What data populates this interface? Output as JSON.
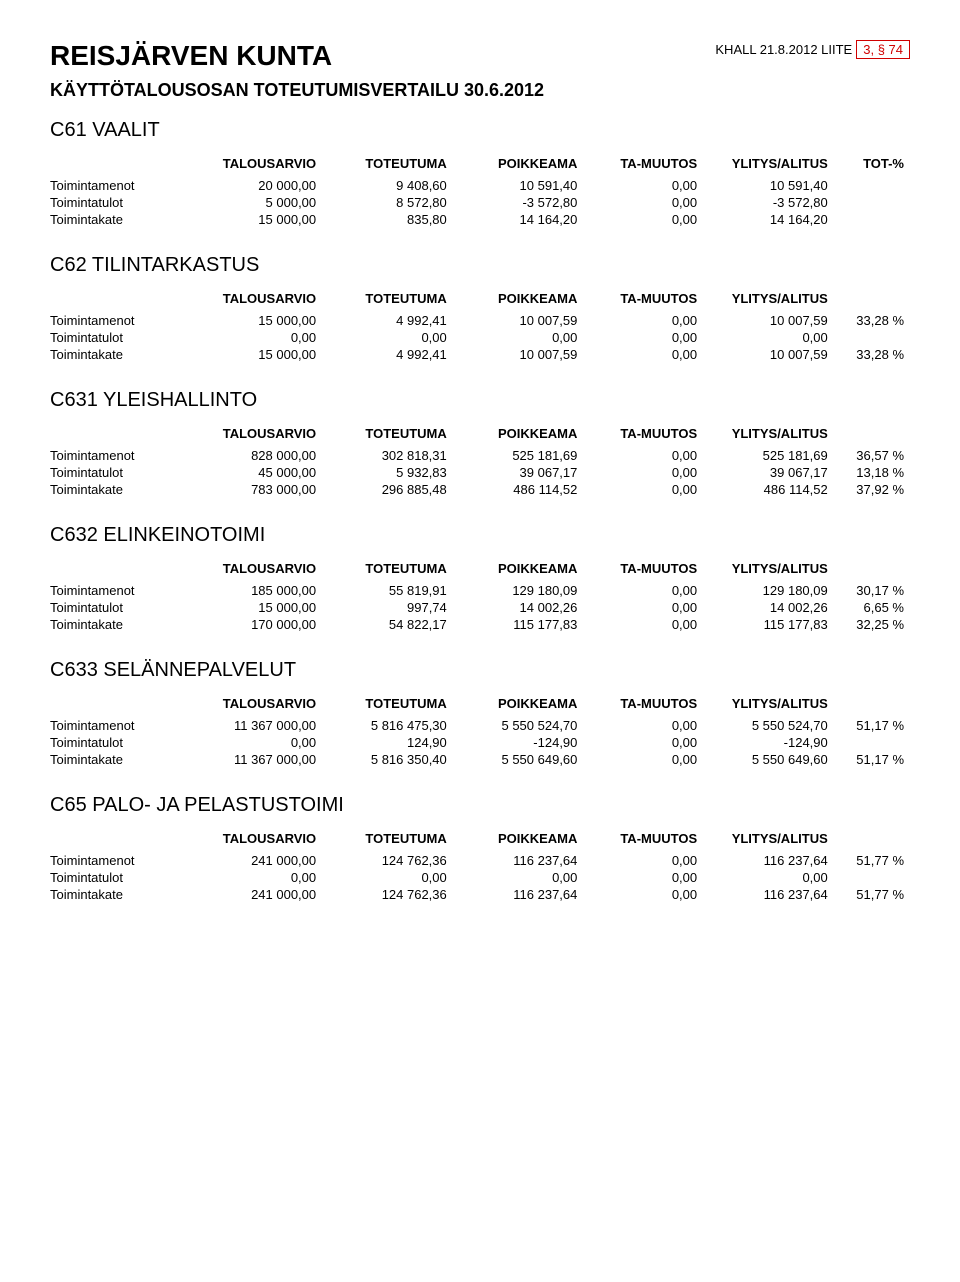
{
  "header": {
    "org": "REISJÄRVEN KUNTA",
    "meeting": "KHALL 21.8.2012 LIITE",
    "liite_box": "3, § 74",
    "subtitle": "KÄYTTÖTALOUSOSAN TOTEUTUMISVERTAILU 30.6.2012"
  },
  "col_labels": {
    "talousarvio": "TALOUSARVIO",
    "toteutuma": "TOTEUTUMA",
    "poikkeama": "POIKKEAMA",
    "ta_muutos": "TA-MUUTOS",
    "ylitys": "YLITYS/ALITUS",
    "totpct": "TOT-%"
  },
  "row_labels": {
    "menot": "Toimintamenot",
    "tulot": "Toimintatulot",
    "kate": "Toimintakate"
  },
  "sections": [
    {
      "title": "C61 VAALIT",
      "show_totpct_header": true,
      "rows": [
        {
          "label": "menot",
          "ta": "20 000,00",
          "tot": "9 408,60",
          "poik": "10 591,40",
          "mu": "0,00",
          "yl": "10 591,40",
          "pct": ""
        },
        {
          "label": "tulot",
          "ta": "5 000,00",
          "tot": "8 572,80",
          "poik": "-3 572,80",
          "mu": "0,00",
          "yl": "-3 572,80",
          "pct": ""
        },
        {
          "label": "kate",
          "ta": "15 000,00",
          "tot": "835,80",
          "poik": "14 164,20",
          "mu": "0,00",
          "yl": "14 164,20",
          "pct": ""
        }
      ]
    },
    {
      "title": "C62  TILINTARKASTUS",
      "show_totpct_header": false,
      "rows": [
        {
          "label": "menot",
          "ta": "15 000,00",
          "tot": "4 992,41",
          "poik": "10 007,59",
          "mu": "0,00",
          "yl": "10 007,59",
          "pct": "33,28 %"
        },
        {
          "label": "tulot",
          "ta": "0,00",
          "tot": "0,00",
          "poik": "0,00",
          "mu": "0,00",
          "yl": "0,00",
          "pct": ""
        },
        {
          "label": "kate",
          "ta": "15 000,00",
          "tot": "4 992,41",
          "poik": "10 007,59",
          "mu": "0,00",
          "yl": "10 007,59",
          "pct": "33,28 %"
        }
      ]
    },
    {
      "title": "C631 YLEISHALLINTO",
      "show_totpct_header": false,
      "rows": [
        {
          "label": "menot",
          "ta": "828 000,00",
          "tot": "302 818,31",
          "poik": "525 181,69",
          "mu": "0,00",
          "yl": "525 181,69",
          "pct": "36,57 %"
        },
        {
          "label": "tulot",
          "ta": "45 000,00",
          "tot": "5 932,83",
          "poik": "39 067,17",
          "mu": "0,00",
          "yl": "39 067,17",
          "pct": "13,18 %"
        },
        {
          "label": "kate",
          "ta": "783 000,00",
          "tot": "296 885,48",
          "poik": "486 114,52",
          "mu": "0,00",
          "yl": "486 114,52",
          "pct": "37,92 %"
        }
      ]
    },
    {
      "title": "C632  ELINKEINOTOIMI",
      "show_totpct_header": false,
      "rows": [
        {
          "label": "menot",
          "ta": "185 000,00",
          "tot": "55 819,91",
          "poik": "129 180,09",
          "mu": "0,00",
          "yl": "129 180,09",
          "pct": "30,17 %"
        },
        {
          "label": "tulot",
          "ta": "15 000,00",
          "tot": "997,74",
          "poik": "14 002,26",
          "mu": "0,00",
          "yl": "14 002,26",
          "pct": "6,65 %"
        },
        {
          "label": "kate",
          "ta": "170 000,00",
          "tot": "54 822,17",
          "poik": "115 177,83",
          "mu": "0,00",
          "yl": "115 177,83",
          "pct": "32,25 %"
        }
      ]
    },
    {
      "title": "C633 SELÄNNEPALVELUT",
      "show_totpct_header": false,
      "rows": [
        {
          "label": "menot",
          "ta": "11 367 000,00",
          "tot": "5 816 475,30",
          "poik": "5 550 524,70",
          "mu": "0,00",
          "yl": "5 550 524,70",
          "pct": "51,17 %"
        },
        {
          "label": "tulot",
          "ta": "0,00",
          "tot": "124,90",
          "poik": "-124,90",
          "mu": "0,00",
          "yl": "-124,90",
          "pct": ""
        },
        {
          "label": "kate",
          "ta": "11 367 000,00",
          "tot": "5 816 350,40",
          "poik": "5 550 649,60",
          "mu": "0,00",
          "yl": "5 550 649,60",
          "pct": "51,17 %"
        }
      ]
    },
    {
      "title": "C65  PALO- JA PELASTUSTOIMI",
      "show_totpct_header": false,
      "rows": [
        {
          "label": "menot",
          "ta": "241 000,00",
          "tot": "124 762,36",
          "poik": "116 237,64",
          "mu": "0,00",
          "yl": "116 237,64",
          "pct": "51,77 %"
        },
        {
          "label": "tulot",
          "ta": "0,00",
          "tot": "0,00",
          "poik": "0,00",
          "mu": "0,00",
          "yl": "0,00",
          "pct": ""
        },
        {
          "label": "kate",
          "ta": "241 000,00",
          "tot": "124 762,36",
          "poik": "116 237,64",
          "mu": "0,00",
          "yl": "116 237,64",
          "pct": "51,77 %"
        }
      ]
    }
  ]
}
